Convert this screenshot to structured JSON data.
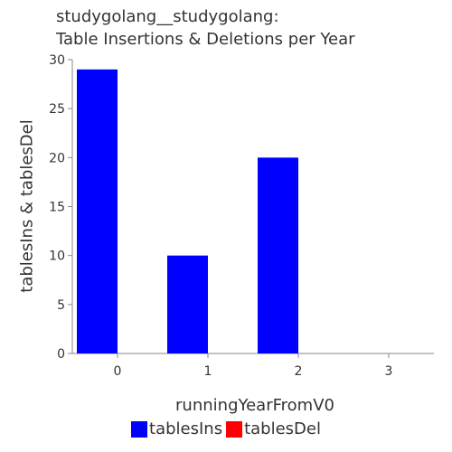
{
  "chart_data": {
    "type": "bar",
    "title": [
      "studygolang__studygolang:",
      "Table Insertions & Deletions per Year"
    ],
    "xlabel": "runningYearFromV0",
    "ylabel": "tablesIns & tablesDel",
    "categories": [
      "0",
      "1",
      "2",
      "3"
    ],
    "ylim": [
      0,
      30
    ],
    "yticks": [
      "0",
      "5",
      "10",
      "15",
      "20",
      "25",
      "30"
    ],
    "series": [
      {
        "name": "tablesIns",
        "color": "#0000ff",
        "values": [
          29,
          10,
          20,
          0
        ]
      },
      {
        "name": "tablesDel",
        "color": "#ff0000",
        "values": [
          0,
          0,
          0,
          0
        ]
      }
    ],
    "legend_position": "bottom",
    "grid": false
  }
}
